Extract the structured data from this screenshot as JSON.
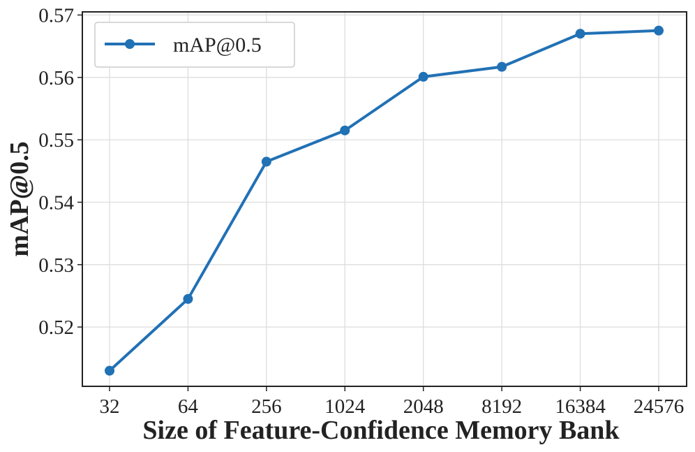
{
  "chart_data": {
    "type": "line",
    "title": "",
    "xlabel": "Size of Feature-Confidence Memory Bank",
    "ylabel": "mAP@0.5",
    "categories": [
      "32",
      "64",
      "256",
      "1024",
      "2048",
      "8192",
      "16384",
      "24576"
    ],
    "series": [
      {
        "name": "mAP@0.5",
        "values": [
          0.513,
          0.5245,
          0.5465,
          0.5515,
          0.5601,
          0.5617,
          0.567,
          0.5675
        ]
      }
    ],
    "ylim": [
      0.5105,
      0.5705
    ],
    "yticks": [
      "0.52",
      "0.53",
      "0.54",
      "0.55",
      "0.56",
      "0.57"
    ],
    "ytick_values": [
      0.52,
      0.53,
      0.54,
      0.55,
      0.56,
      0.57
    ],
    "grid": true,
    "legend_position": "top-left",
    "colors": {
      "series": "#2171b5",
      "grid": "#dddddd",
      "axis": "#222222"
    }
  }
}
